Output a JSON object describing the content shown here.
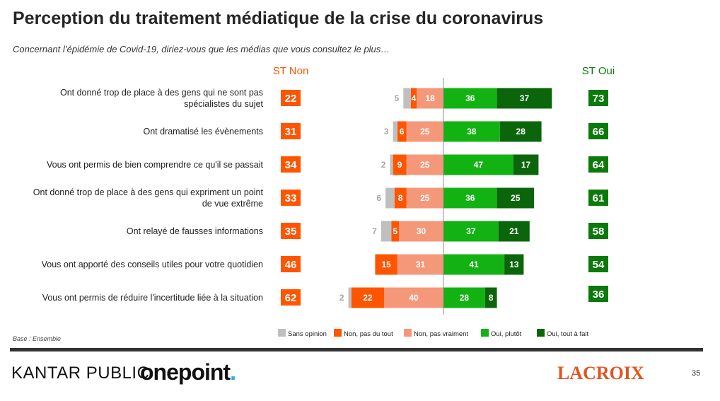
{
  "title": "Perception du traitement médiatique de la crise du coronavirus",
  "subtitle": "Concernant l’épidémie de Covid-19, diriez-vous que les médias que vous consultez le plus…",
  "base_note": "Base : Ensemble",
  "page_number": "35",
  "logos": {
    "kantar": "KANTAR PUBLIC",
    "onepoint_text": "onepoint",
    "onepoint_dot": ".",
    "lacroix": "LACROIX"
  },
  "colors": {
    "sans_opinion": "#bfbfbf",
    "non_pas_du_tout": "#ff5500",
    "non_pas_vraiment": "#f5987a",
    "oui_plutot": "#13b213",
    "oui_tout_a_fait": "#0b660b",
    "st_non": "#ff5500",
    "st_oui": "#0b7a0b"
  },
  "chart_data": {
    "type": "bar",
    "stacking": "diverging",
    "st_non_header": "ST Non",
    "st_oui_header": "ST Oui",
    "categories": [
      [
        "Ont donné trop de place à des gens qui ne sont pas",
        "spécialistes du sujet"
      ],
      [
        "Ont dramatisé les évènements"
      ],
      [
        "Vous ont permis de bien comprendre ce qu'il se passait"
      ],
      [
        "Ont donné trop de place à des gens qui expriment un point",
        "de vue extrême"
      ],
      [
        "Ont relayé de fausses informations"
      ],
      [
        "Vous ont apporté des conseils utiles pour votre quotidien"
      ],
      [
        "Vous ont permis de réduire l'incertitude liée à la situation"
      ]
    ],
    "series": [
      {
        "name": "Sans opinion",
        "values": [
          5,
          3,
          2,
          6,
          7,
          0,
          2
        ]
      },
      {
        "name": "Non, pas du tout",
        "values": [
          4,
          6,
          9,
          8,
          5,
          15,
          22
        ]
      },
      {
        "name": "Non, pas vraiment",
        "values": [
          18,
          25,
          25,
          25,
          30,
          31,
          40
        ]
      },
      {
        "name": "Oui, plutôt",
        "values": [
          36,
          38,
          47,
          36,
          37,
          41,
          28
        ]
      },
      {
        "name": "Oui, tout à fait",
        "values": [
          37,
          28,
          17,
          25,
          21,
          13,
          8
        ]
      }
    ],
    "st_non": [
      22,
      31,
      34,
      33,
      35,
      46,
      62
    ],
    "st_oui": [
      73,
      66,
      64,
      61,
      58,
      54,
      36
    ],
    "legend": [
      "Sans opinion",
      "Non, pas du tout",
      "Non, pas vraiment",
      "Oui, plutôt",
      "Oui, tout à fait"
    ],
    "legend_position": "bottom",
    "grid": false
  }
}
